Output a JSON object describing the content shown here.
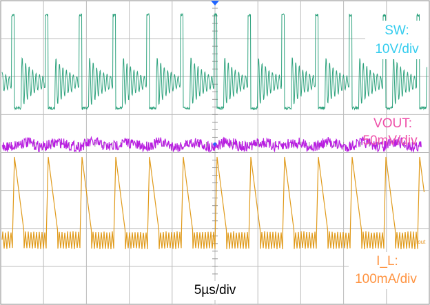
{
  "labels": {
    "sw": {
      "name": "SW:",
      "scale": "10V/div"
    },
    "vout": {
      "name": "VOUT:",
      "scale": "50mV/div"
    },
    "il": {
      "name": "I_L:",
      "scale": "100mA/div",
      "tag": "Iout"
    },
    "timebase": "5µs/div"
  }
}
